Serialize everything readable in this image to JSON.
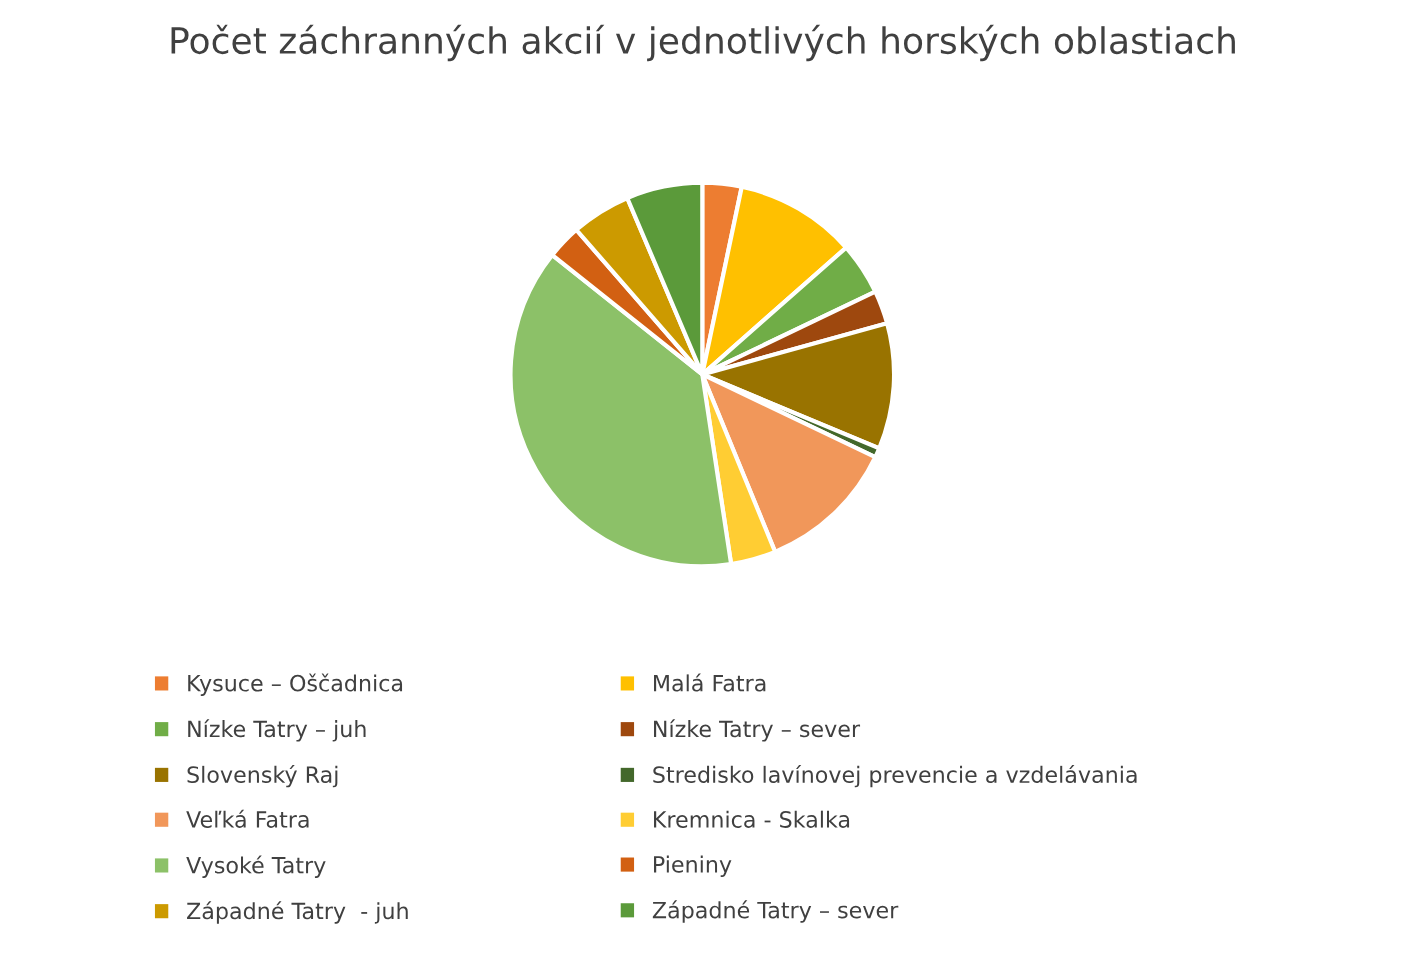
{
  "chart_data": {
    "type": "pie",
    "title": "Počet záchranných akcií v jednotlivých horských oblastiach",
    "categories": [
      "Kysuce – Oščadnica",
      "Malá Fatra",
      "Nízke Tatry – juh",
      "Nízke Tatry – sever",
      "Slovenský Raj",
      "Stredisko lavínovej prevencie a vzdelávania",
      "Veľká Fatra",
      "Kremnica - Skalka",
      "Vysoké Tatry",
      "Pieniny",
      "Západné Tatry  - juh",
      "Západné Tatry – sever"
    ],
    "values": [
      3.3,
      10.2,
      4.4,
      2.8,
      10.6,
      0.8,
      11.7,
      3.8,
      38.1,
      2.9,
      5.0,
      6.4
    ],
    "colors": [
      "#ed7d31",
      "#ffc000",
      "#70ad47",
      "#9e480e",
      "#997300",
      "#43682b",
      "#f1975a",
      "#ffcd33",
      "#8cc168",
      "#d26012",
      "#cc9a00",
      "#5b9a3a"
    ],
    "legend": "bottom"
  }
}
